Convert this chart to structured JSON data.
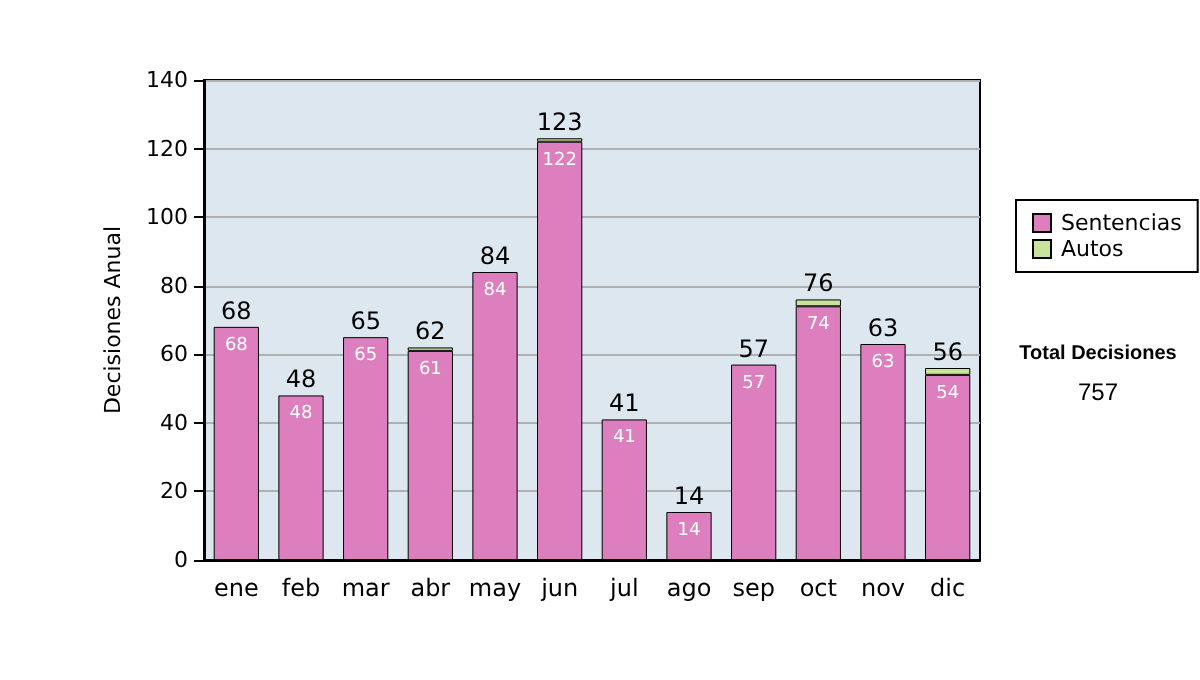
{
  "chart_data": {
    "type": "bar",
    "stacked": true,
    "ylabel": "Decisiones Anual",
    "categories": [
      "ene",
      "feb",
      "mar",
      "abr",
      "may",
      "jun",
      "jul",
      "ago",
      "sep",
      "oct",
      "nov",
      "dic"
    ],
    "series": [
      {
        "name": "Sentencias",
        "color": "#dd7fbf",
        "values": [
          68,
          48,
          65,
          61,
          84,
          122,
          41,
          14,
          57,
          74,
          63,
          54
        ],
        "value_labels": [
          "68",
          "48",
          "65",
          "61",
          "84",
          "122",
          "41",
          "14",
          "57",
          "74",
          "63",
          "54"
        ]
      },
      {
        "name": "Autos",
        "color": "#c8e49a",
        "values": [
          0,
          0,
          0,
          1,
          0,
          1,
          0,
          0,
          0,
          2,
          0,
          2
        ]
      }
    ],
    "totals": [
      "68",
      "48",
      "65",
      "62",
      "84",
      "123",
      "41",
      "14",
      "57",
      "76",
      "63",
      "56"
    ],
    "ylim": [
      0,
      140
    ],
    "yticks": [
      0,
      20,
      40,
      60,
      80,
      100,
      120,
      140
    ],
    "grid": "y",
    "legend": "right",
    "annotations": [
      "Total Decisiones",
      "757"
    ]
  }
}
